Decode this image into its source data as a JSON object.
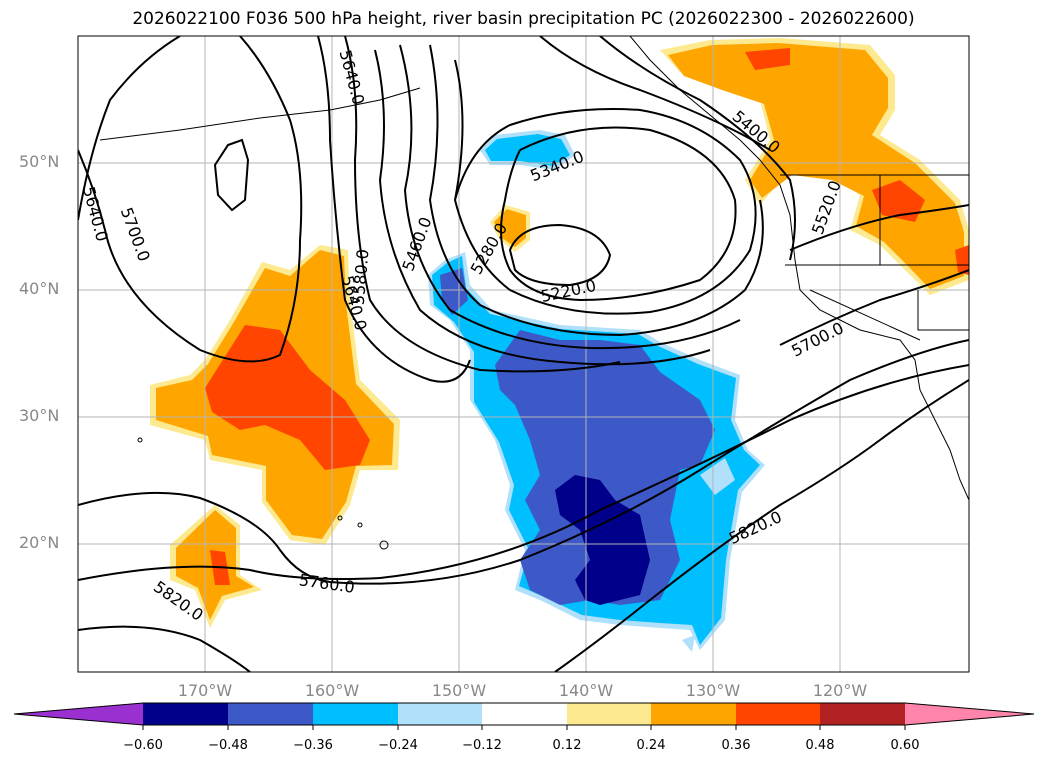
{
  "title": "2026022100 F036 500 hPa height, river basin precipitation PC (2026022300 - 2026022600)",
  "lat_ticks": [
    "50°N",
    "40°N",
    "30°N",
    "20°N"
  ],
  "lon_ticks": [
    "170°W",
    "160°W",
    "150°W",
    "140°W",
    "130°W",
    "120°W"
  ],
  "contour_labels": [
    "5640.0",
    "5700.0",
    "5640.0",
    "5580.0",
    "5460.0",
    "5280.0",
    "5340.0",
    "5220.0",
    "5520.0",
    "5700.0",
    "5820.0",
    "5760.0",
    "5820.0",
    "5640.0",
    "5400.0"
  ],
  "colorbar": {
    "ticks": [
      "−0.60",
      "−0.48",
      "−0.36",
      "−0.24",
      "−0.12",
      "0.12",
      "0.24",
      "0.36",
      "0.48",
      "0.60"
    ],
    "colors": [
      "#9b30d0",
      "#00008b",
      "#3d59c7",
      "#00bfff",
      "#b0e0fa",
      "#ffffff",
      "#fde98f",
      "#ffa500",
      "#ff4500",
      "#b22222",
      "#ff85aa"
    ]
  }
}
